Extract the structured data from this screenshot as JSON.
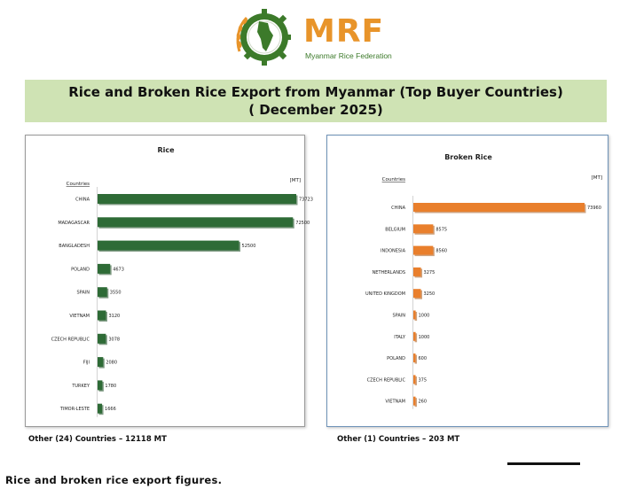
{
  "header": {
    "logo_text": "MRF",
    "logo_subtitle": "Myanmar Rice Federation",
    "title_line1": "Rice and Broken Rice Export from Myanmar (Top Buyer Countries)",
    "title_line2": "( December 2025)"
  },
  "notes": {
    "rice_other": "Other (24) Countries – 12118 MT",
    "broken_other": "Other (1) Countries –  203 MT"
  },
  "caption": "Rice and broken rice export figures.",
  "colors": {
    "rice_bar": "#2e6b36",
    "broken_bar": "#e97f2c",
    "title_banner": "#cfe3b4",
    "logo_orange": "#e8942a",
    "logo_green": "#3c7a2a"
  },
  "chart_data": [
    {
      "type": "bar",
      "orientation": "horizontal",
      "title": "Rice",
      "category_header": "Countries",
      "unit_label": "[MT]",
      "categories": [
        "CHINA",
        "MADAGASCAR",
        "BANGLADESH",
        "POLAND",
        "SPAIN",
        "VIETNAM",
        "CZECH REPUBLIC",
        "FIJI",
        "TURKEY",
        "TIMOR-LESTE"
      ],
      "values": [
        73723,
        72500,
        52500,
        4673,
        3550,
        3120,
        3078,
        2080,
        1780,
        1666
      ],
      "grid": false,
      "legend": "none"
    },
    {
      "type": "bar",
      "orientation": "horizontal",
      "title": "Broken Rice",
      "category_header": "Countries",
      "unit_label": "[MT]",
      "categories": [
        "CHINA",
        "BELGIUM",
        "INDONESIA",
        "NETHERLANDS",
        "UNITED KINGDOM",
        "SPAIN",
        "ITALY",
        "POLAND",
        "CZECH REPUBLIC",
        "VIETNAM"
      ],
      "values": [
        73960,
        8575,
        8560,
        3275,
        3250,
        1000,
        1000,
        600,
        375,
        260
      ],
      "grid": false,
      "legend": "none"
    }
  ]
}
